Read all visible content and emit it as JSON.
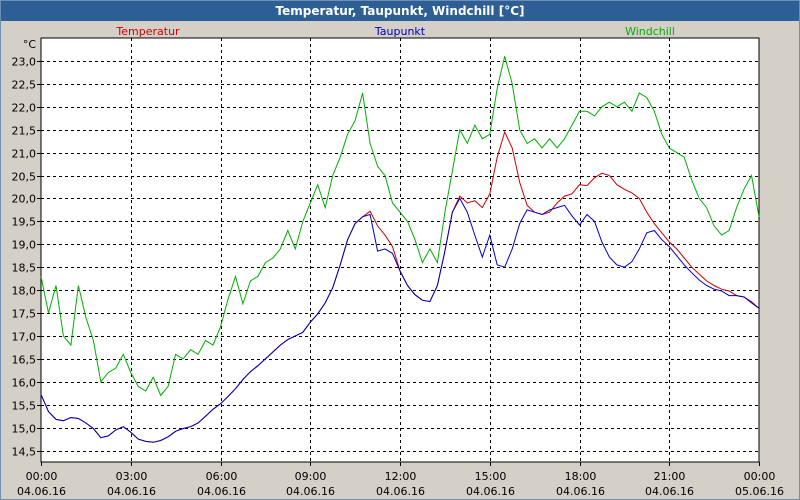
{
  "window": {
    "title": "Temperatur, Taupunkt, Windchill [°C]"
  },
  "colors": {
    "background": "#d4d0c8",
    "titlebar": "#2d5f94",
    "temperatur": "#d00000",
    "taupunkt": "#0000c0",
    "windchill": "#00b000",
    "grid": "#000000"
  },
  "chart_data": {
    "type": "line",
    "title": "Temperatur, Taupunkt, Windchill [°C]",
    "ylabel": "°C",
    "xlabel": "",
    "ylim": [
      14.25,
      23.5
    ],
    "grid": true,
    "legend": "top",
    "x_hours": [
      0,
      0.25,
      0.5,
      0.75,
      1,
      1.25,
      1.5,
      1.75,
      2,
      2.25,
      2.5,
      2.75,
      3,
      3.25,
      3.5,
      3.75,
      4,
      4.25,
      4.5,
      4.75,
      5,
      5.25,
      5.5,
      5.75,
      6,
      6.25,
      6.5,
      6.75,
      7,
      7.25,
      7.5,
      7.75,
      8,
      8.25,
      8.5,
      8.75,
      9,
      9.25,
      9.5,
      9.75,
      10,
      10.25,
      10.5,
      10.75,
      11,
      11.25,
      11.5,
      11.75,
      12,
      12.25,
      12.5,
      12.75,
      13,
      13.25,
      13.5,
      13.75,
      14,
      14.25,
      14.5,
      14.75,
      15,
      15.25,
      15.5,
      15.75,
      16,
      16.25,
      16.5,
      16.75,
      17,
      17.25,
      17.5,
      17.75,
      18,
      18.25,
      18.5,
      18.75,
      19,
      19.25,
      19.5,
      19.75,
      20,
      20.25,
      20.5,
      20.75,
      21,
      21.25,
      21.5,
      21.75,
      22,
      22.25,
      22.5,
      22.75,
      23,
      23.25,
      23.5,
      23.75,
      24
    ],
    "x_ticks": [
      {
        "time": "00:00",
        "date": "04.06.16"
      },
      {
        "time": "03:00",
        "date": "04.06.16"
      },
      {
        "time": "06:00",
        "date": "04.06.16"
      },
      {
        "time": "09:00",
        "date": "04.06.16"
      },
      {
        "time": "12:00",
        "date": "04.06.16"
      },
      {
        "time": "15:00",
        "date": "04.06.16"
      },
      {
        "time": "18:00",
        "date": "04.06.16"
      },
      {
        "time": "21:00",
        "date": "04.06.16"
      },
      {
        "time": "00:00",
        "date": "05.06.16"
      }
    ],
    "y_ticks": [
      "14,5",
      "15,0",
      "15,5",
      "16,0",
      "16,5",
      "17,0",
      "17,5",
      "18,0",
      "18,5",
      "19,0",
      "19,5",
      "20,0",
      "20,5",
      "21,0",
      "21,5",
      "22,0",
      "22,5",
      "23,0"
    ],
    "series": [
      {
        "name": "Temperatur",
        "values": [
          15.72,
          15.35,
          15.18,
          15.15,
          15.22,
          15.2,
          15.1,
          14.98,
          14.78,
          14.82,
          14.95,
          15.02,
          14.9,
          14.75,
          14.7,
          14.68,
          14.72,
          14.8,
          14.92,
          14.98,
          15.02,
          15.1,
          15.25,
          15.4,
          15.52,
          15.68,
          15.85,
          16.05,
          16.22,
          16.35,
          16.5,
          16.65,
          16.8,
          16.92,
          17.0,
          17.08,
          17.3,
          17.48,
          17.72,
          18.05,
          18.55,
          19.1,
          19.45,
          19.6,
          19.72,
          19.4,
          19.2,
          18.95,
          18.42,
          18.1,
          17.9,
          17.78,
          17.75,
          18.1,
          18.85,
          19.7,
          20.05,
          19.9,
          19.95,
          19.8,
          20.1,
          20.9,
          21.45,
          21.1,
          20.35,
          19.85,
          19.7,
          19.65,
          19.7,
          19.9,
          20.05,
          20.1,
          20.3,
          20.28,
          20.45,
          20.55,
          20.5,
          20.3,
          20.2,
          20.12,
          20.0,
          19.7,
          19.45,
          19.25,
          19.05,
          18.9,
          18.7,
          18.5,
          18.35,
          18.2,
          18.1,
          18.02,
          17.98,
          17.88,
          17.85,
          17.75,
          17.6
        ]
      },
      {
        "name": "Taupunkt",
        "values": [
          15.72,
          15.35,
          15.18,
          15.15,
          15.22,
          15.2,
          15.1,
          14.98,
          14.78,
          14.82,
          14.95,
          15.02,
          14.9,
          14.75,
          14.7,
          14.68,
          14.72,
          14.8,
          14.92,
          14.98,
          15.02,
          15.1,
          15.25,
          15.4,
          15.52,
          15.68,
          15.85,
          16.05,
          16.22,
          16.35,
          16.5,
          16.65,
          16.8,
          16.92,
          17.0,
          17.08,
          17.3,
          17.48,
          17.72,
          18.05,
          18.55,
          19.1,
          19.45,
          19.6,
          19.65,
          18.85,
          18.9,
          18.8,
          18.42,
          18.1,
          17.9,
          17.78,
          17.75,
          18.1,
          18.85,
          19.7,
          20.0,
          19.7,
          19.2,
          18.72,
          19.2,
          18.55,
          18.5,
          18.9,
          19.45,
          19.75,
          19.7,
          19.65,
          19.75,
          19.8,
          19.85,
          19.62,
          19.42,
          19.65,
          19.5,
          19.05,
          18.72,
          18.55,
          18.5,
          18.62,
          18.9,
          19.25,
          19.3,
          19.1,
          18.95,
          18.75,
          18.55,
          18.38,
          18.22,
          18.1,
          18.02,
          17.98,
          17.88,
          17.88,
          17.85,
          17.72,
          17.6
        ]
      },
      {
        "name": "Windchill",
        "values": [
          18.3,
          17.5,
          18.1,
          17.0,
          16.8,
          18.1,
          17.4,
          16.9,
          16.0,
          16.2,
          16.3,
          16.6,
          16.2,
          15.9,
          15.8,
          16.1,
          15.7,
          15.9,
          16.6,
          16.5,
          16.7,
          16.6,
          16.9,
          16.8,
          17.2,
          17.8,
          18.3,
          17.7,
          18.2,
          18.3,
          18.6,
          18.7,
          18.9,
          19.3,
          18.9,
          19.5,
          19.9,
          20.3,
          19.8,
          20.5,
          20.9,
          21.4,
          21.7,
          22.3,
          21.2,
          20.7,
          20.5,
          19.9,
          19.7,
          19.5,
          19.1,
          18.6,
          18.9,
          18.6,
          19.7,
          20.6,
          21.5,
          21.2,
          21.6,
          21.3,
          21.4,
          22.4,
          23.1,
          22.5,
          21.5,
          21.2,
          21.3,
          21.1,
          21.3,
          21.1,
          21.3,
          21.6,
          21.9,
          21.9,
          21.8,
          22.0,
          22.1,
          22.0,
          22.1,
          21.9,
          22.3,
          22.2,
          21.9,
          21.4,
          21.1,
          21.0,
          20.9,
          20.4,
          20.0,
          19.8,
          19.4,
          19.2,
          19.3,
          19.8,
          20.2,
          20.5,
          19.6
        ]
      }
    ]
  }
}
